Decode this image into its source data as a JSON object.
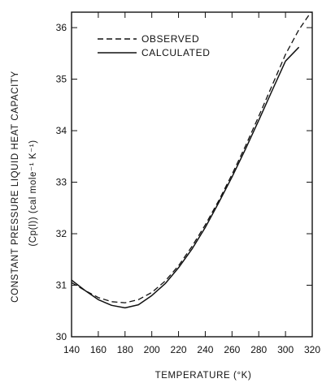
{
  "chart_data": {
    "type": "line",
    "title": "",
    "xlabel": "TEMPERATURE (°K)",
    "ylabel": "CONSTANT PRESSURE LIQUID HEAT CAPACITY",
    "ylabel_units": "(Cp(l)) (cal mole⁻¹ K⁻¹)",
    "xlim": [
      140,
      320
    ],
    "ylim": [
      30,
      36.3
    ],
    "x_ticks": [
      140,
      160,
      180,
      200,
      220,
      240,
      260,
      280,
      300,
      320
    ],
    "y_ticks": [
      30,
      31,
      32,
      33,
      34,
      35,
      36
    ],
    "grid": false,
    "legend_position": "top-left",
    "series": [
      {
        "name": "OBSERVED",
        "line_style": "dashed",
        "x": [
          140,
          150,
          160,
          170,
          180,
          190,
          200,
          210,
          220,
          230,
          240,
          250,
          260,
          270,
          280,
          290,
          300,
          310,
          319
        ],
        "y": [
          31.05,
          30.9,
          30.76,
          30.68,
          30.66,
          30.72,
          30.86,
          31.08,
          31.38,
          31.75,
          32.17,
          32.64,
          33.15,
          33.7,
          34.28,
          34.88,
          35.48,
          35.96,
          36.3
        ]
      },
      {
        "name": "CALCULATED",
        "line_style": "solid",
        "x": [
          140,
          150,
          160,
          170,
          180,
          190,
          200,
          210,
          220,
          230,
          240,
          250,
          260,
          270,
          280,
          290,
          300,
          310
        ],
        "y": [
          31.1,
          30.9,
          30.72,
          30.61,
          30.56,
          30.62,
          30.8,
          31.03,
          31.34,
          31.7,
          32.12,
          32.6,
          33.1,
          33.64,
          34.2,
          34.78,
          35.35,
          35.62
        ]
      }
    ]
  }
}
